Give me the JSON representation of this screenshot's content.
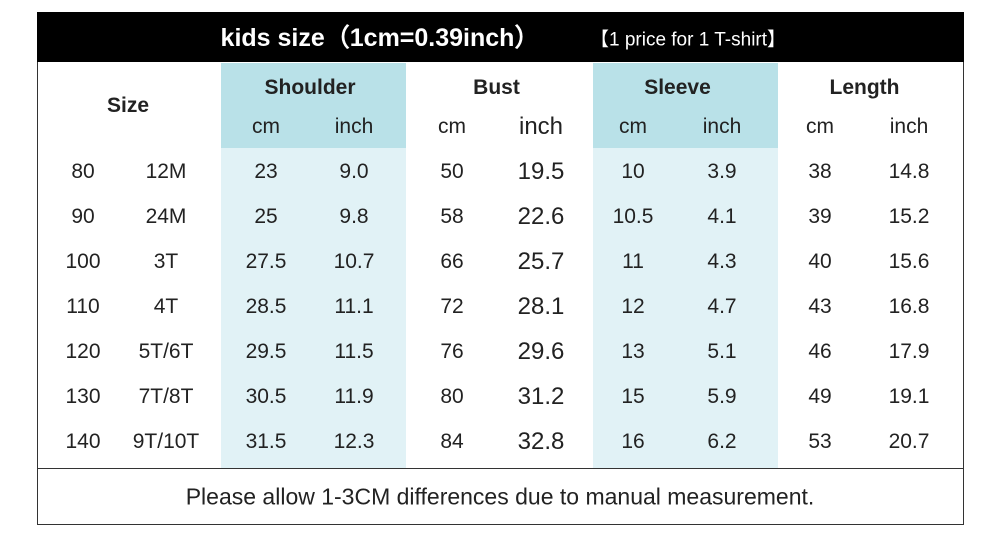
{
  "header": {
    "title": "kids size（1cm=0.39inch）",
    "note": "【1 price for 1 T-shirt】"
  },
  "table": {
    "size_header": "Size",
    "groups": [
      {
        "name": "Shoulder",
        "units": [
          "cm",
          "inch"
        ]
      },
      {
        "name": "Bust",
        "units": [
          "cm",
          "inch"
        ]
      },
      {
        "name": "Sleeve",
        "units": [
          "cm",
          "inch"
        ]
      },
      {
        "name": "Length",
        "units": [
          "cm",
          "inch"
        ]
      }
    ],
    "rows": [
      [
        "80",
        "12M",
        "23",
        "9.0",
        "50",
        "19.5",
        "10",
        "3.9",
        "38",
        "14.8"
      ],
      [
        "90",
        "24M",
        "25",
        "9.8",
        "58",
        "22.6",
        "10.5",
        "4.1",
        "39",
        "15.2"
      ],
      [
        "100",
        "3T",
        "27.5",
        "10.7",
        "66",
        "25.7",
        "11",
        "4.3",
        "40",
        "15.6"
      ],
      [
        "110",
        "4T",
        "28.5",
        "11.1",
        "72",
        "28.1",
        "12",
        "4.7",
        "43",
        "16.8"
      ],
      [
        "120",
        "5T/6T",
        "29.5",
        "11.5",
        "76",
        "29.6",
        "13",
        "5.1",
        "46",
        "17.9"
      ],
      [
        "130",
        "7T/8T",
        "30.5",
        "11.9",
        "80",
        "31.2",
        "15",
        "5.9",
        "49",
        "19.1"
      ],
      [
        "140",
        "9T/10T",
        "31.5",
        "12.3",
        "84",
        "32.8",
        "16",
        "6.2",
        "53",
        "20.7"
      ]
    ]
  },
  "footer": "Please allow 1-3CM differences due to manual measurement."
}
